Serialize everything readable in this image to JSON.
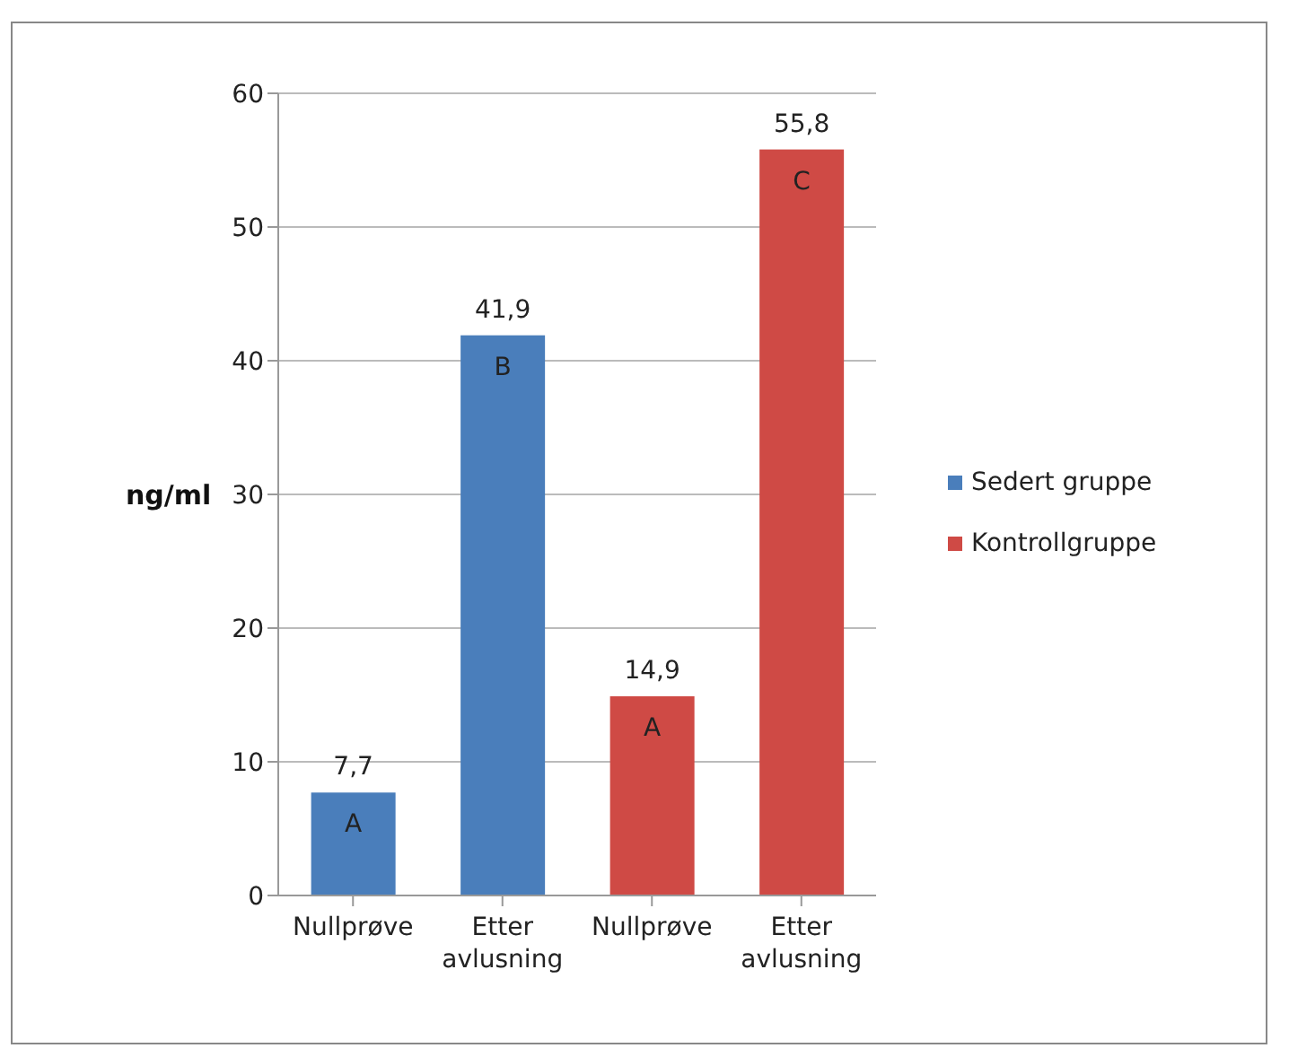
{
  "chart_data": {
    "type": "bar",
    "ylabel": "ng/ml",
    "categories": [
      "Nullprøve",
      "Etter avlusning",
      "Nullprøve",
      "Etter avlusning"
    ],
    "series": [
      {
        "name": "Sedert gruppe",
        "color": "#4a7ebb",
        "values": [
          7.7,
          41.9,
          null,
          null
        ],
        "value_labels": [
          "7,7",
          "41,9",
          null,
          null
        ]
      },
      {
        "name": "Kontrollgruppe",
        "color": "#cf4a45",
        "values": [
          null,
          null,
          14.9,
          55.8
        ],
        "value_labels": [
          null,
          null,
          "14,9",
          "55,8"
        ]
      }
    ],
    "annotations": [
      "A",
      "B",
      "A",
      "C"
    ],
    "ylim": [
      0,
      60
    ],
    "yticks": [
      0,
      10,
      20,
      30,
      40,
      50,
      60
    ],
    "grid": "y",
    "legend": "right"
  }
}
